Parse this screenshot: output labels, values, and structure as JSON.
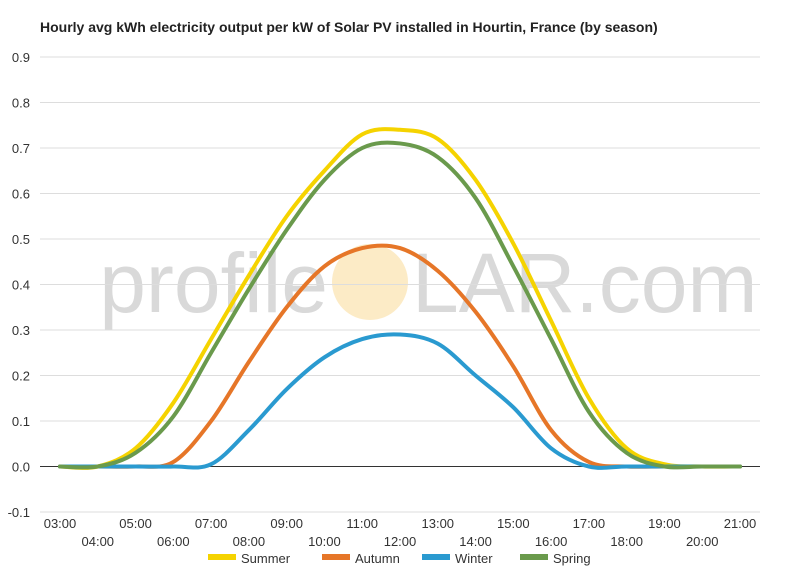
{
  "chart_data": {
    "type": "line",
    "title": "Hourly avg kWh electricity output per kW of Solar PV installed in Hourtin, France (by season)",
    "xlabel": "",
    "ylabel": "",
    "ylim": [
      -0.1,
      0.9
    ],
    "y_ticks": [
      "-0.1",
      "0.0",
      "0.1",
      "0.2",
      "0.3",
      "0.4",
      "0.5",
      "0.6",
      "0.7",
      "0.8",
      "0.9"
    ],
    "grid": true,
    "legend_position": "bottom",
    "categories": [
      "03:00",
      "04:00",
      "05:00",
      "06:00",
      "07:00",
      "08:00",
      "09:00",
      "10:00",
      "11:00",
      "12:00",
      "13:00",
      "14:00",
      "15:00",
      "16:00",
      "17:00",
      "18:00",
      "19:00",
      "20:00",
      "21:00"
    ],
    "series": [
      {
        "name": "Summer",
        "color": "#f5d300",
        "values": [
          0.0,
          0.0,
          0.04,
          0.14,
          0.28,
          0.42,
          0.55,
          0.65,
          0.73,
          0.74,
          0.72,
          0.63,
          0.49,
          0.32,
          0.15,
          0.04,
          0.005,
          0.0,
          0.0
        ]
      },
      {
        "name": "Autumn",
        "color": "#e67628",
        "values": [
          0.0,
          0.0,
          0.0,
          0.01,
          0.1,
          0.23,
          0.35,
          0.44,
          0.48,
          0.48,
          0.43,
          0.34,
          0.22,
          0.08,
          0.01,
          0.0,
          0.0,
          0.0,
          0.0
        ]
      },
      {
        "name": "Winter",
        "color": "#2a9ad0",
        "values": [
          0.0,
          0.0,
          0.0,
          0.0,
          0.005,
          0.08,
          0.17,
          0.24,
          0.28,
          0.29,
          0.27,
          0.2,
          0.13,
          0.04,
          0.0,
          0.0,
          0.0,
          0.0,
          0.0
        ]
      },
      {
        "name": "Spring",
        "color": "#6a9a4c",
        "values": [
          0.0,
          0.0,
          0.03,
          0.11,
          0.25,
          0.39,
          0.52,
          0.63,
          0.7,
          0.71,
          0.68,
          0.59,
          0.44,
          0.28,
          0.12,
          0.03,
          0.0,
          0.0,
          0.0
        ]
      }
    ]
  },
  "watermark": {
    "left_text": "profile",
    "right_text": "LAR.com",
    "logo": "profileSOLAR.com",
    "sun_color": "#fbe6b8"
  }
}
